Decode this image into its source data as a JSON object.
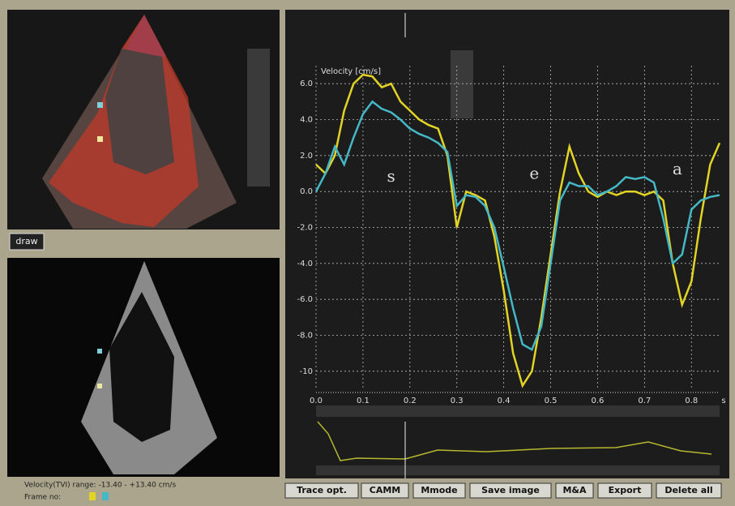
{
  "chart_data": {
    "type": "line",
    "y_label": "Velocity [cm/s]",
    "x_label": "s",
    "x": [
      0,
      0.02,
      0.04,
      0.06,
      0.08,
      0.1,
      0.12,
      0.14,
      0.16,
      0.18,
      0.2,
      0.22,
      0.24,
      0.26,
      0.28,
      0.3,
      0.32,
      0.34,
      0.36,
      0.38,
      0.4,
      0.42,
      0.44,
      0.46,
      0.48,
      0.5,
      0.52,
      0.54,
      0.56,
      0.58,
      0.6,
      0.62,
      0.64,
      0.66,
      0.68,
      0.7,
      0.72,
      0.74,
      0.76,
      0.78,
      0.8,
      0.82,
      0.84,
      0.86
    ],
    "series": [
      {
        "color": "#e2d424",
        "values": [
          1.5,
          1.0,
          2.0,
          4.5,
          6.0,
          6.5,
          6.4,
          5.8,
          6.0,
          5.0,
          4.5,
          4.0,
          3.7,
          3.5,
          2.0,
          -2.0,
          0.0,
          -0.2,
          -0.5,
          -2.5,
          -5.5,
          -9.0,
          -10.8,
          -10.0,
          -7.0,
          -3.5,
          0.0,
          2.5,
          1.0,
          0.0,
          -0.3,
          0.0,
          -0.2,
          0.0,
          0.0,
          -0.2,
          0.0,
          -0.5,
          -4.0,
          -6.3,
          -5.0,
          -1.5,
          1.5,
          2.7
        ]
      },
      {
        "color": "#45b8c8",
        "values": [
          0.0,
          1.0,
          2.5,
          1.5,
          3.0,
          4.3,
          5.0,
          4.6,
          4.4,
          4.0,
          3.5,
          3.2,
          3.0,
          2.7,
          2.2,
          -0.8,
          -0.2,
          -0.3,
          -0.8,
          -2.0,
          -4.2,
          -6.5,
          -8.5,
          -8.8,
          -7.5,
          -4.0,
          -0.5,
          0.5,
          0.3,
          0.3,
          -0.2,
          0.0,
          0.3,
          0.8,
          0.7,
          0.8,
          0.5,
          -1.5,
          -4.0,
          -3.5,
          -1.0,
          -0.5,
          -0.3,
          -0.2
        ]
      }
    ],
    "xlim": [
      0,
      0.86
    ],
    "xticks": [
      {
        "value": 0,
        "label": "0.0"
      },
      0.1,
      0.2,
      0.3,
      0.4,
      0.5,
      0.6,
      0.7,
      0.8
    ],
    "ylim": [
      -11,
      7
    ],
    "yticks": [
      {
        "value": 6,
        "label": "6.0"
      },
      {
        "value": 4,
        "label": "4.0"
      },
      {
        "value": 2,
        "label": "2.0"
      },
      {
        "value": 0,
        "label": "0.0"
      },
      {
        "value": -2,
        "label": "-2.0"
      },
      {
        "value": -4,
        "label": "-4.0"
      },
      {
        "value": -6,
        "label": "-6.0"
      },
      {
        "value": -8,
        "label": "-8.0"
      },
      -10
    ],
    "grid": true,
    "annotations": [
      {
        "text": "s",
        "x": 0.16,
        "y": 0.8
      },
      {
        "text": "e",
        "x": 0.465,
        "y": 0.95
      },
      {
        "text": "a",
        "x": 0.77,
        "y": 1.2
      }
    ]
  },
  "ui": {
    "draw_button": "draw",
    "status": "Velocity(TVI) range: -13.40 - +13.40 cm/s",
    "frame": "Frame no:",
    "buttons": [
      "Trace opt.",
      "CAMM",
      "Mmode",
      "Save image",
      "M&A",
      "Export",
      "Delete all"
    ]
  }
}
